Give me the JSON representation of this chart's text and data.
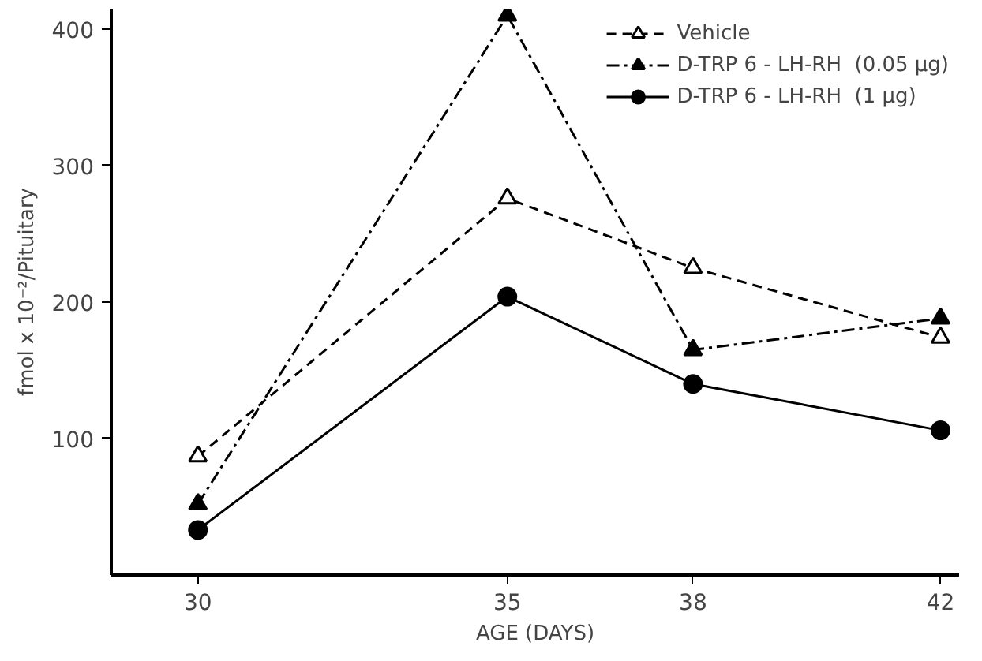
{
  "chart_data": {
    "type": "line",
    "xlabel": "AGE (DAYS)",
    "ylabel": "fmol x 10⁻²/Pituitary",
    "x": [
      30,
      35,
      38,
      42
    ],
    "xlim": [
      28.6,
      42.3
    ],
    "xticks": [
      30,
      35,
      38,
      42
    ],
    "ylim": [
      0,
      415
    ],
    "yticks": [
      100,
      200,
      300,
      400
    ],
    "grid": false,
    "legend": "top right",
    "series": [
      {
        "name": "Vehicle",
        "color": "#000000",
        "marker": "triangle_open",
        "line_style": "dashed",
        "values": [
          87,
          276,
          225,
          174
        ]
      },
      {
        "name": "D-TRP 6 - LH-RH  (0.05 μg)",
        "color": "#000000",
        "marker": "triangle",
        "line_style": "dashdot",
        "values": [
          52,
          410,
          165,
          188
        ]
      },
      {
        "name": "D-TRP 6 - LH-RH  (1 μg)",
        "color": "#000000",
        "marker": "circle",
        "line_style": "solid",
        "values": [
          33,
          204,
          140,
          106
        ]
      }
    ]
  }
}
